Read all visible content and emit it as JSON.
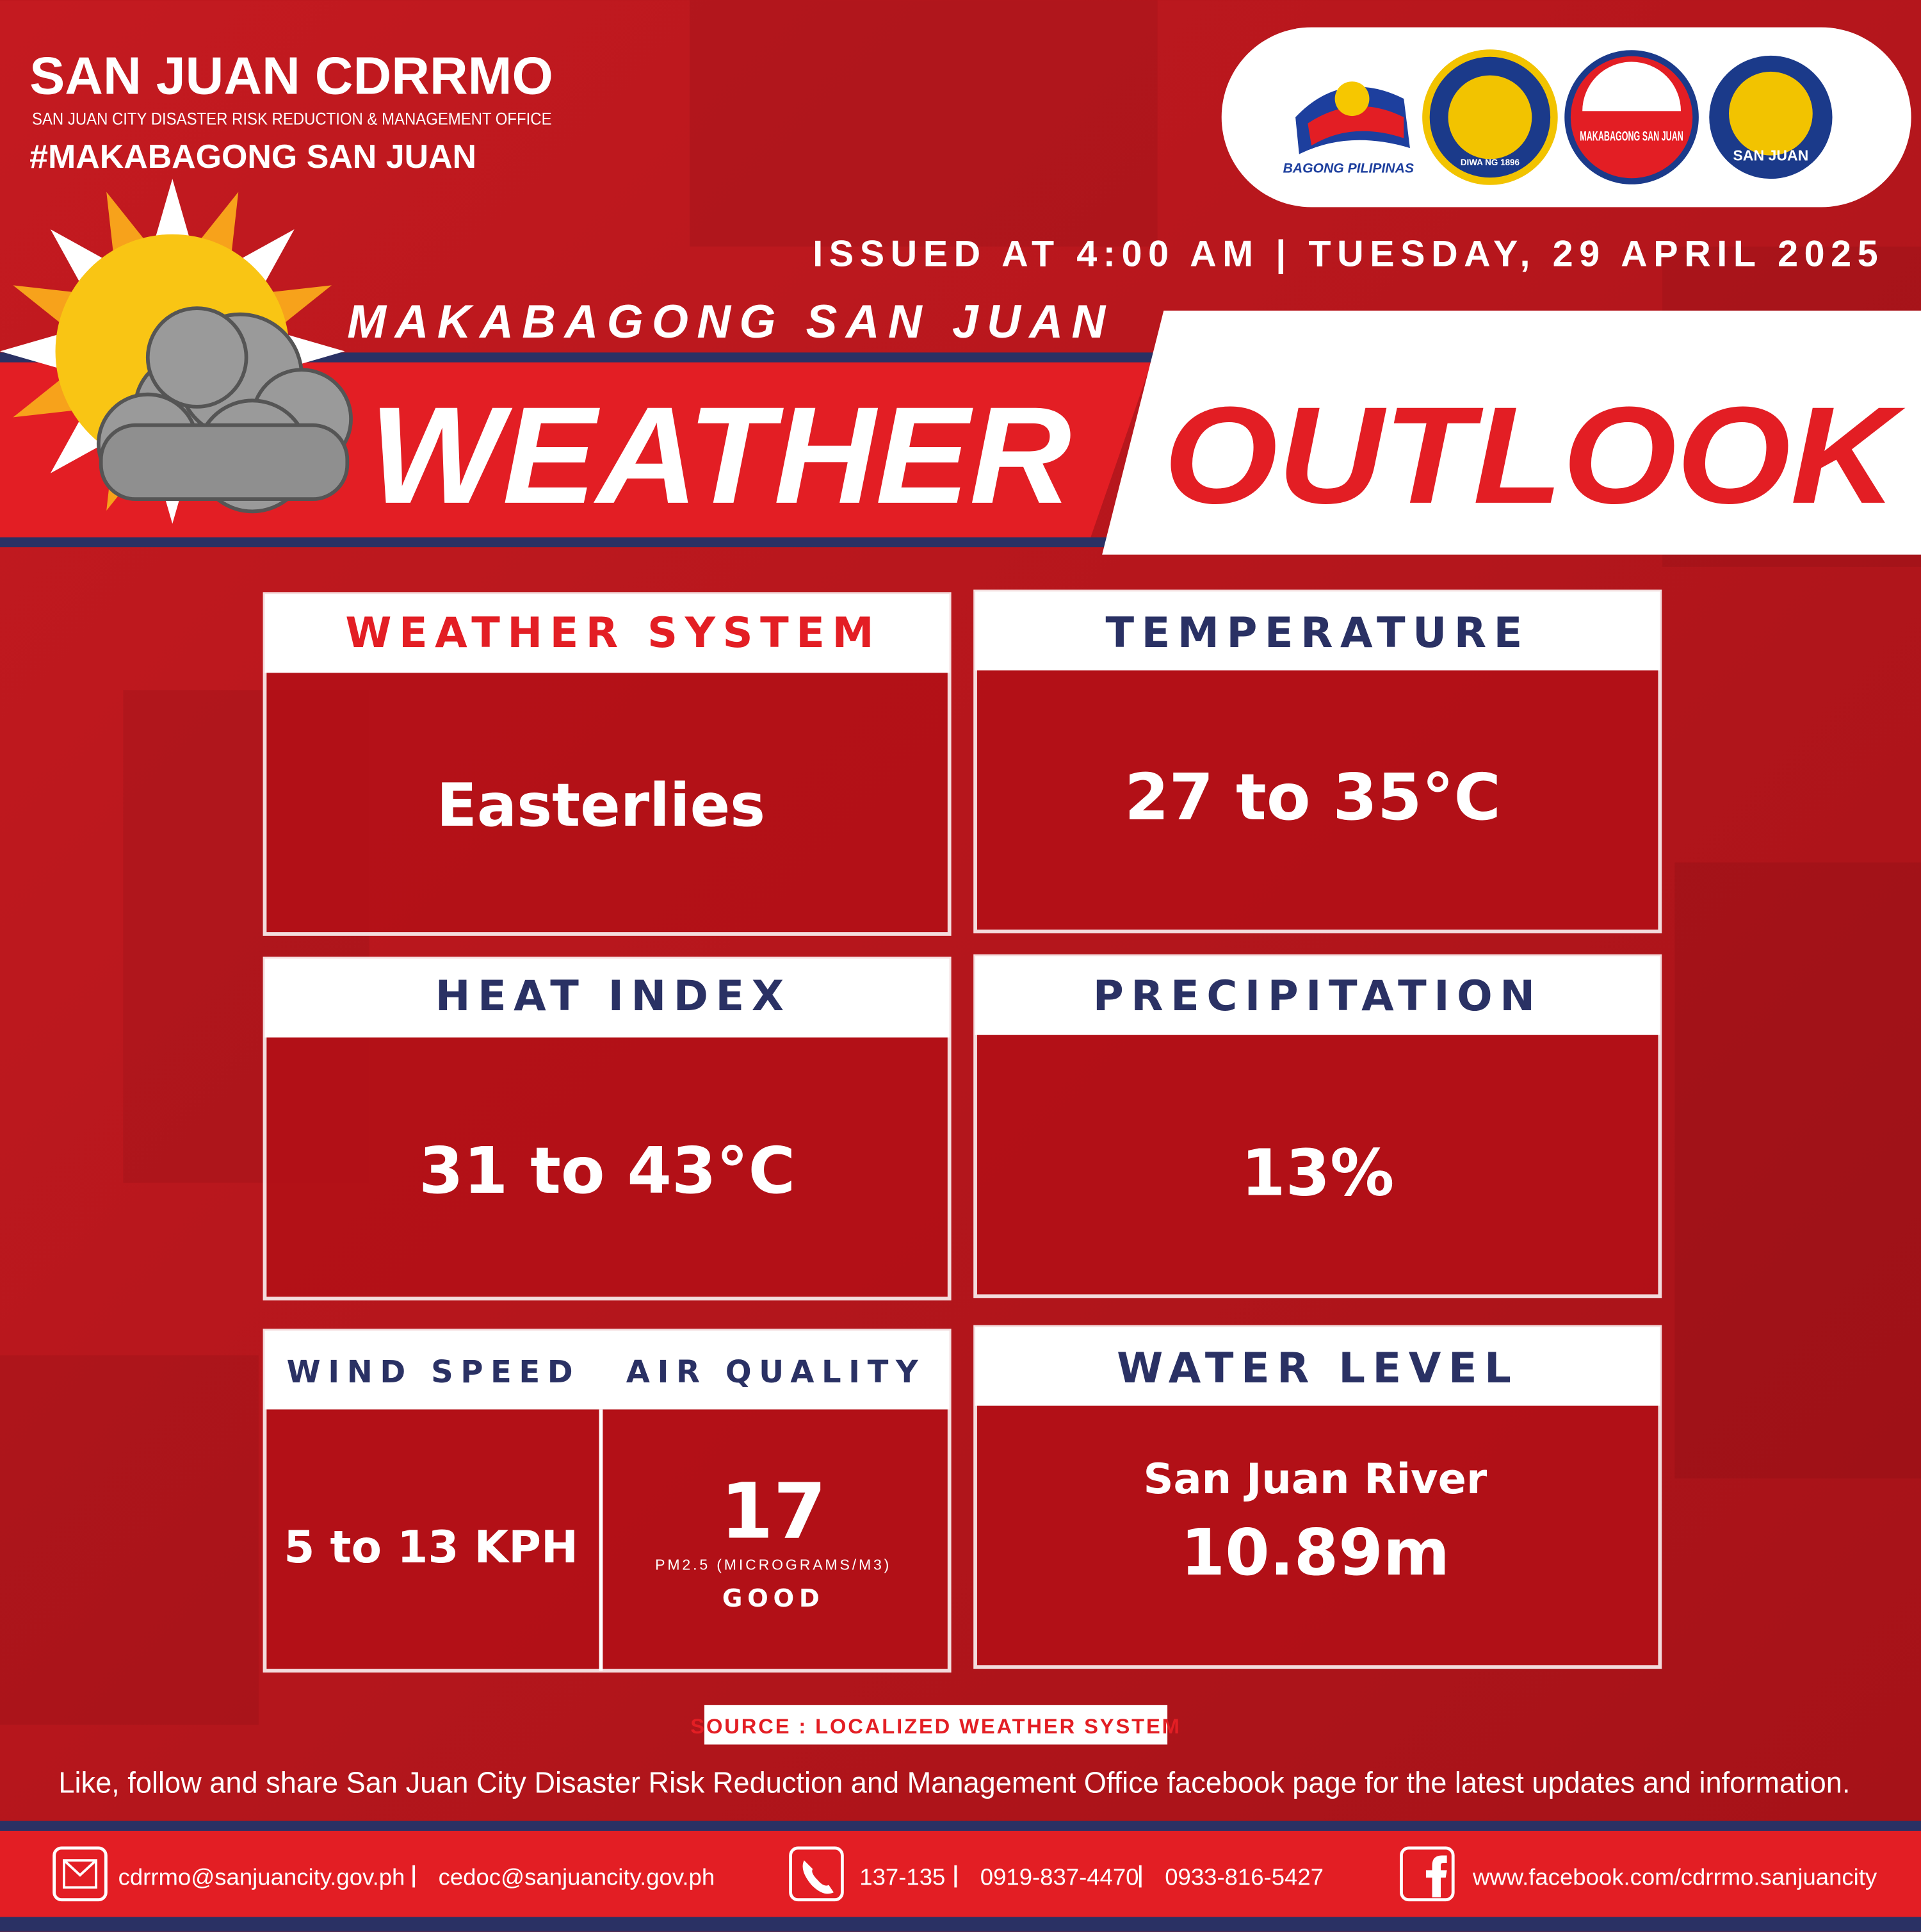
{
  "header": {
    "org": "SAN JUAN CDRRMO",
    "org_full": "SAN JUAN CITY DISASTER RISK REDUCTION & MANAGEMENT OFFICE",
    "hashtag": "#MAKABAGONG SAN JUAN"
  },
  "logos": [
    "BAGONG PILIPINAS",
    "DIWA NG 1896",
    "MAKABAGONG SAN JUAN",
    "SAN JUAN"
  ],
  "issued": "ISSUED AT 4:00 AM | TUESDAY, 29 APRIL 2025",
  "banner": {
    "subtitle": "MAKABAGONG SAN JUAN",
    "title_left": "WEATHER",
    "title_right": "OUTLOOK"
  },
  "panels": {
    "weather_system": {
      "label": "WEATHER SYSTEM",
      "value": "Easterlies"
    },
    "temperature": {
      "label": "TEMPERATURE",
      "value": "27 to 35°C"
    },
    "heat_index": {
      "label": "HEAT INDEX",
      "value": "31 to 43°C"
    },
    "precipitation": {
      "label": "PRECIPITATION",
      "value": "13%"
    },
    "wind_speed": {
      "label": "WIND SPEED",
      "value": "5 to 13 KPH"
    },
    "air_quality": {
      "label": "AIR QUALITY",
      "value": "17",
      "unit": "PM2.5 (MICROGRAMS/M3)",
      "rating": "GOOD"
    },
    "water_level": {
      "label": "WATER LEVEL",
      "location": "San Juan River",
      "value": "10.89m"
    }
  },
  "source": "SOURCE : LOCALIZED WEATHER SYSTEM",
  "note": "Like, follow and share San Juan City Disaster Risk Reduction and Management Office facebook page for the latest updates and information.",
  "contacts": {
    "emails": [
      "cdrrmo@sanjuancity.gov.ph",
      "cedoc@sanjuancity.gov.ph"
    ],
    "phones": [
      "137-135",
      "0919-837-4470",
      "0933-816-5427"
    ],
    "facebook": "www.facebook.com/cdrrmo.sanjuancity"
  }
}
